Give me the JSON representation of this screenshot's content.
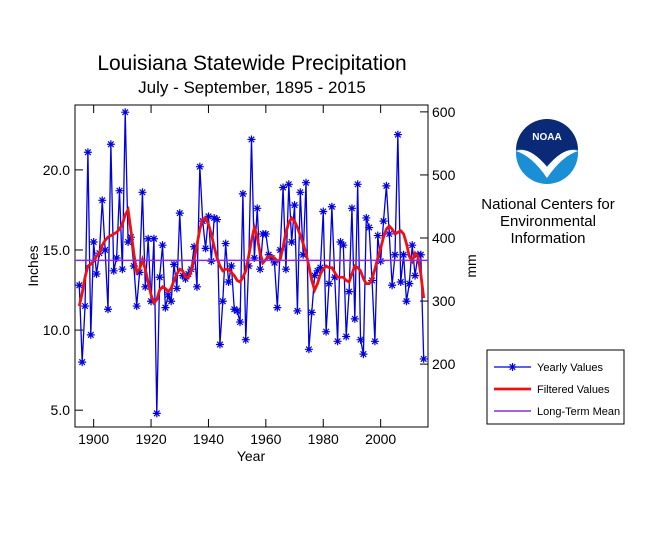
{
  "chart_data": {
    "type": "line",
    "title": "Louisiana Statewide Precipitation",
    "subtitle": "July - September, 1895 - 2015",
    "xlabel": "Year",
    "ylabel": "Inches",
    "y2label": "mm",
    "x": [
      1895,
      1896,
      1897,
      1898,
      1899,
      1900,
      1901,
      1902,
      1903,
      1904,
      1905,
      1906,
      1907,
      1908,
      1909,
      1910,
      1911,
      1912,
      1913,
      1914,
      1915,
      1916,
      1917,
      1918,
      1919,
      1920,
      1921,
      1922,
      1923,
      1924,
      1925,
      1926,
      1927,
      1928,
      1929,
      1930,
      1931,
      1932,
      1933,
      1934,
      1935,
      1936,
      1937,
      1938,
      1939,
      1940,
      1941,
      1942,
      1943,
      1944,
      1945,
      1946,
      1947,
      1948,
      1949,
      1950,
      1951,
      1952,
      1953,
      1954,
      1955,
      1956,
      1957,
      1958,
      1959,
      1960,
      1961,
      1962,
      1963,
      1964,
      1965,
      1966,
      1967,
      1968,
      1969,
      1970,
      1971,
      1972,
      1973,
      1974,
      1975,
      1976,
      1977,
      1978,
      1979,
      1980,
      1981,
      1982,
      1983,
      1984,
      1985,
      1986,
      1987,
      1988,
      1989,
      1990,
      1991,
      1992,
      1993,
      1994,
      1995,
      1996,
      1997,
      1998,
      1999,
      2000,
      2001,
      2002,
      2003,
      2004,
      2005,
      2006,
      2007,
      2008,
      2009,
      2010,
      2011,
      2012,
      2013,
      2014,
      2015
    ],
    "series": [
      {
        "name": "Yearly Values",
        "color": "#0000e0",
        "marker": "asterisk",
        "values": [
          12.8,
          8.0,
          11.5,
          21.1,
          9.7,
          15.5,
          13.5,
          14.8,
          18.1,
          15.0,
          11.3,
          21.6,
          13.7,
          14.5,
          18.7,
          13.8,
          23.6,
          15.5,
          15.8,
          14.0,
          11.5,
          13.6,
          18.6,
          12.7,
          15.7,
          11.8,
          15.7,
          4.8,
          13.3,
          15.3,
          11.4,
          12.2,
          11.8,
          14.1,
          12.6,
          17.3,
          13.4,
          13.2,
          13.5,
          13.8,
          15.2,
          12.7,
          20.2,
          16.8,
          15.1,
          17.1,
          14.3,
          17.0,
          16.9,
          9.1,
          11.8,
          15.4,
          13.0,
          14.0,
          11.3,
          11.2,
          10.5,
          18.5,
          9.4,
          14.0,
          21.9,
          14.5,
          17.6,
          13.8,
          16.0,
          16.0,
          14.7,
          14.5,
          14.2,
          11.4,
          15.0,
          18.9,
          13.8,
          19.1,
          15.5,
          17.8,
          11.2,
          18.6,
          14.7,
          19.2,
          8.8,
          11.1,
          13.4,
          13.7,
          13.9,
          17.4,
          9.9,
          12.9,
          17.7,
          13.3,
          9.3,
          15.5,
          15.3,
          9.6,
          12.4,
          17.6,
          10.7,
          19.1,
          9.4,
          8.5,
          17.0,
          16.4,
          13.1,
          9.3,
          15.9,
          14.3,
          16.8,
          19.0,
          16.0,
          12.8,
          14.7,
          22.2,
          13.0,
          14.7,
          11.8,
          12.9,
          15.3,
          13.4,
          14.7,
          14.7,
          8.2
        ]
      },
      {
        "name": "Filtered Values",
        "color": "#ee1111",
        "values": [
          11.5,
          12.3,
          13.3,
          14.0,
          14.1,
          14.3,
          14.6,
          14.8,
          15.3,
          15.6,
          15.8,
          15.9,
          16.0,
          16.1,
          16.3,
          16.6,
          17.2,
          17.5,
          16.2,
          14.8,
          13.6,
          13.8,
          14.4,
          13.8,
          13.0,
          12.2,
          11.7,
          11.9,
          12.5,
          12.7,
          12.6,
          12.4,
          12.6,
          13.1,
          13.5,
          13.8,
          13.7,
          13.3,
          13.3,
          13.7,
          14.4,
          15.3,
          16.3,
          16.9,
          17.0,
          16.6,
          16.0,
          15.2,
          14.5,
          14.0,
          13.7,
          13.8,
          13.8,
          13.6,
          13.4,
          13.1,
          13.0,
          13.3,
          13.7,
          14.6,
          15.6,
          16.4,
          15.8,
          14.8,
          14.2,
          14.4,
          14.6,
          14.6,
          14.5,
          14.3,
          14.4,
          15.2,
          16.1,
          16.7,
          17.0,
          16.8,
          16.4,
          15.9,
          15.4,
          14.8,
          14.0,
          13.1,
          12.5,
          12.9,
          13.5,
          13.8,
          14.0,
          13.9,
          13.9,
          13.6,
          13.3,
          13.3,
          13.3,
          13.1,
          13.0,
          13.5,
          14.0,
          13.9,
          13.7,
          13.2,
          12.9,
          12.9,
          13.2,
          13.8,
          14.5,
          15.1,
          15.8,
          16.3,
          16.5,
          16.3,
          16.0,
          16.1,
          16.2,
          16.0,
          15.4,
          14.6,
          14.3,
          14.8,
          14.6,
          13.5,
          12.0
        ]
      },
      {
        "name": "Long-Term Mean",
        "color": "#8a2be2",
        "value": 14.35
      }
    ],
    "xlim": [
      1893.5,
      2016.5
    ],
    "xticks": [
      1900,
      1920,
      1940,
      1960,
      1980,
      2000
    ],
    "ylim": [
      3.95,
      24.05
    ],
    "yticks": [
      {
        "value": 5,
        "label": "5.0"
      },
      {
        "value": 10,
        "label": "10.0"
      },
      {
        "value": 15,
        "label": "15.0"
      },
      {
        "value": 20,
        "label": "20.0"
      }
    ],
    "y2lim": [
      100.3,
      610.9
    ],
    "y2ticks": [
      200,
      300,
      400,
      500,
      600
    ],
    "legend": "lower right"
  },
  "logo": {
    "text": "NOAA",
    "caption": [
      "National Centers for",
      "Environmental",
      "Information"
    ]
  }
}
